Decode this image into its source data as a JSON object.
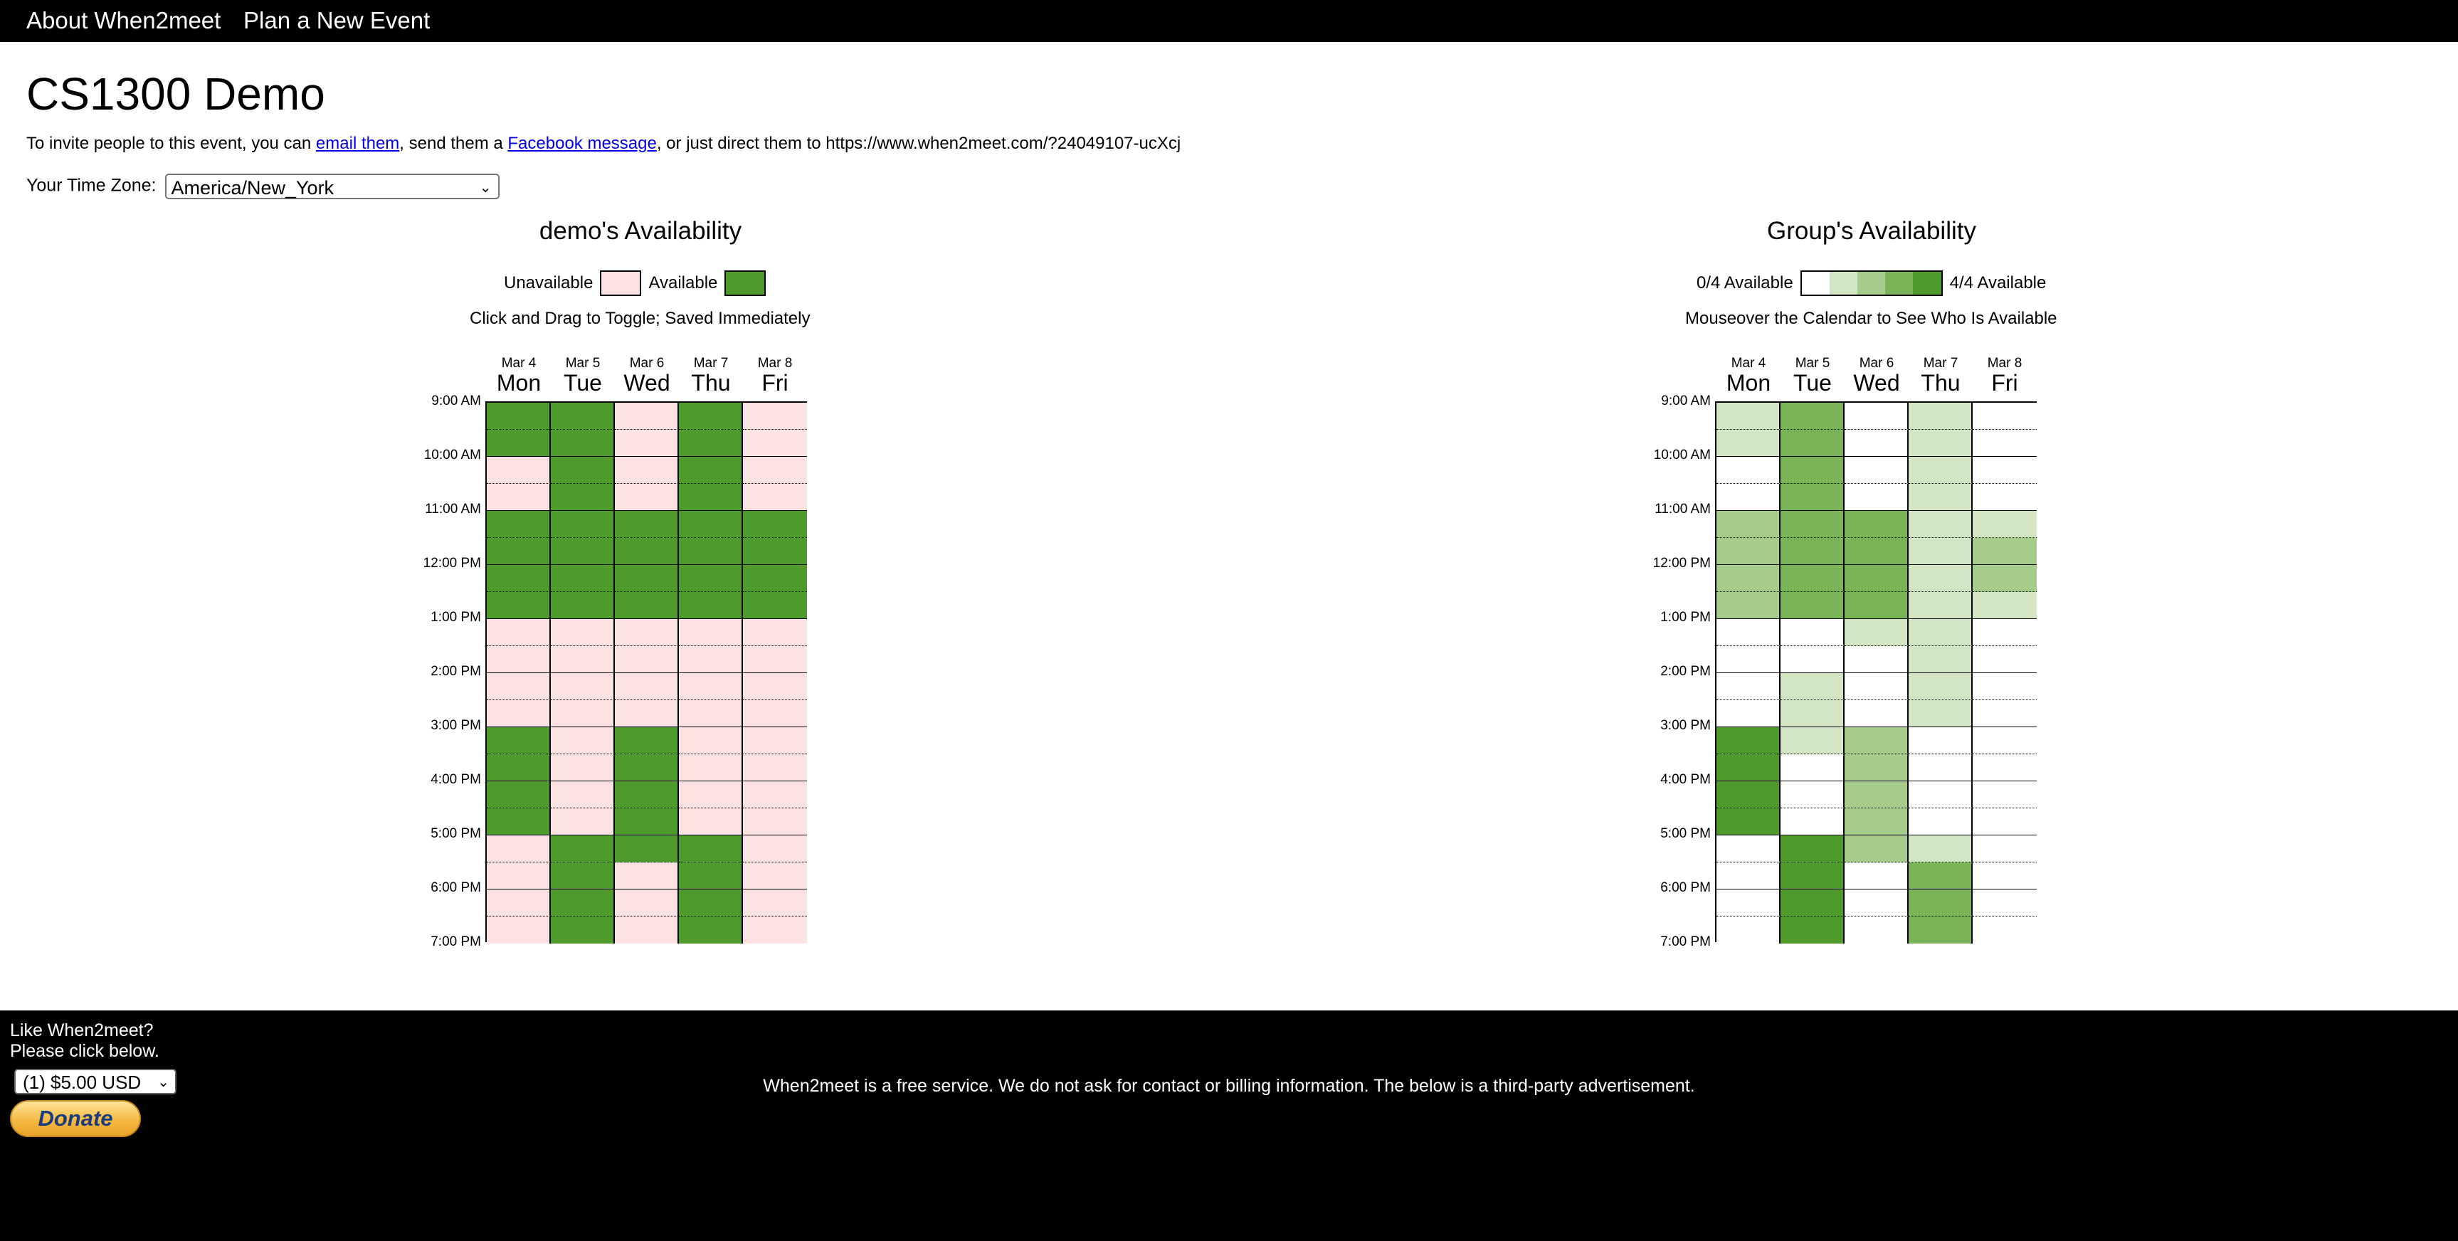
{
  "nav": {
    "about": "About When2meet",
    "plan": "Plan a New Event"
  },
  "event": {
    "title": "CS1300 Demo",
    "invite_prefix": "To invite people to this event, you can ",
    "email_link": "email them",
    "invite_mid": ", send them a ",
    "facebook_link": "Facebook message",
    "invite_suffix": ", or just direct them to https://www.when2meet.com/?24049107-ucXcj"
  },
  "timezone": {
    "label": "Your Time Zone:",
    "value": "America/New_York"
  },
  "days": [
    {
      "date": "Mar 4",
      "weekday": "Mon"
    },
    {
      "date": "Mar 5",
      "weekday": "Tue"
    },
    {
      "date": "Mar 6",
      "weekday": "Wed"
    },
    {
      "date": "Mar 7",
      "weekday": "Thu"
    },
    {
      "date": "Mar 8",
      "weekday": "Fri"
    }
  ],
  "times": [
    "9:00 AM",
    "10:00 AM",
    "11:00 AM",
    "12:00 PM",
    "1:00 PM",
    "2:00 PM",
    "3:00 PM",
    "4:00 PM",
    "5:00 PM",
    "6:00 PM",
    "7:00 PM"
  ],
  "colors": {
    "unavailable": "#fde2e2",
    "available": "#4e9a2a",
    "group_levels": [
      "#ffffff",
      "#d2e6c4",
      "#a6cc8c",
      "#7ab458",
      "#4e9a2a"
    ]
  },
  "personal": {
    "title": "demo's Availability",
    "legend_unavailable": "Unavailable",
    "legend_available": "Available",
    "hint": "Click and Drag to Toggle; Saved Immediately",
    "slots": [
      [
        1,
        1,
        0,
        0,
        1,
        1,
        1,
        1,
        0,
        0,
        0,
        0,
        1,
        1,
        1,
        1,
        0,
        0,
        0,
        0
      ],
      [
        1,
        1,
        1,
        1,
        1,
        1,
        1,
        1,
        0,
        0,
        0,
        0,
        0,
        0,
        0,
        0,
        1,
        1,
        1,
        1
      ],
      [
        0,
        0,
        0,
        0,
        1,
        1,
        1,
        1,
        0,
        0,
        0,
        0,
        1,
        1,
        1,
        1,
        1,
        0,
        0,
        0
      ],
      [
        1,
        1,
        1,
        1,
        1,
        1,
        1,
        1,
        0,
        0,
        0,
        0,
        0,
        0,
        0,
        0,
        1,
        1,
        1,
        1
      ],
      [
        0,
        0,
        0,
        0,
        1,
        1,
        1,
        1,
        0,
        0,
        0,
        0,
        0,
        0,
        0,
        0,
        0,
        0,
        0,
        0
      ]
    ]
  },
  "group": {
    "title": "Group's Availability",
    "legend_min": "0/4 Available",
    "legend_max": "4/4 Available",
    "hint": "Mouseover the Calendar to See Who Is Available",
    "slots": [
      [
        1,
        1,
        0,
        0,
        2,
        2,
        2,
        2,
        0,
        0,
        0,
        0,
        4,
        4,
        4,
        4,
        0,
        0,
        0,
        0
      ],
      [
        3,
        3,
        3,
        3,
        3,
        3,
        3,
        3,
        0,
        0,
        1,
        1,
        1,
        0,
        0,
        0,
        4,
        4,
        4,
        4
      ],
      [
        0,
        0,
        0,
        0,
        3,
        3,
        3,
        3,
        1,
        0,
        0,
        0,
        2,
        2,
        2,
        2,
        2,
        0,
        0,
        0
      ],
      [
        1,
        1,
        1,
        1,
        1,
        1,
        1,
        1,
        1,
        1,
        1,
        1,
        0,
        0,
        0,
        0,
        1,
        3,
        3,
        3
      ],
      [
        0,
        0,
        0,
        0,
        1,
        2,
        2,
        1,
        0,
        0,
        0,
        0,
        0,
        0,
        0,
        0,
        0,
        0,
        0,
        0
      ]
    ]
  },
  "footer": {
    "like_line1": "Like When2meet?",
    "like_line2": "Please click below.",
    "amount": "(1) $5.00 USD",
    "donate": "Donate",
    "free_text": "When2meet is a free service. We do not ask for contact or billing information. The below is a third-party advertisement."
  }
}
